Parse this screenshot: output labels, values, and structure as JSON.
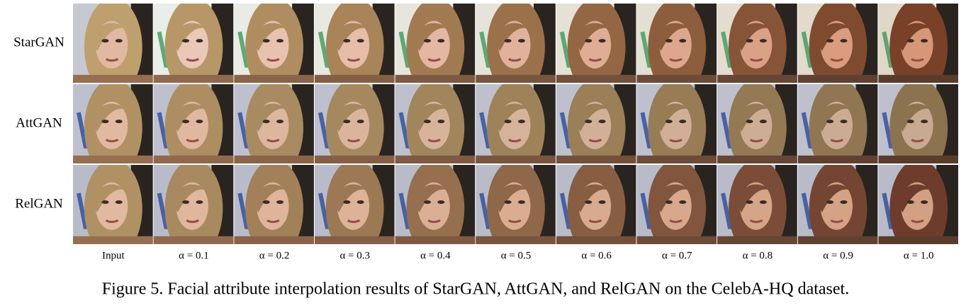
{
  "figure": {
    "rows": [
      "StarGAN",
      "AttGAN",
      "RelGAN"
    ],
    "columns": [
      "Input",
      "α = 0.1",
      "α = 0.2",
      "α = 0.3",
      "α = 0.4",
      "α = 0.5",
      "α = 0.6",
      "α = 0.7",
      "α = 0.8",
      "α = 0.9",
      "α = 1.0"
    ],
    "caption": "Figure 5. Facial attribute interpolation results of StarGAN, AttGAN, and RelGAN on the CelebA-HQ dataset."
  }
}
